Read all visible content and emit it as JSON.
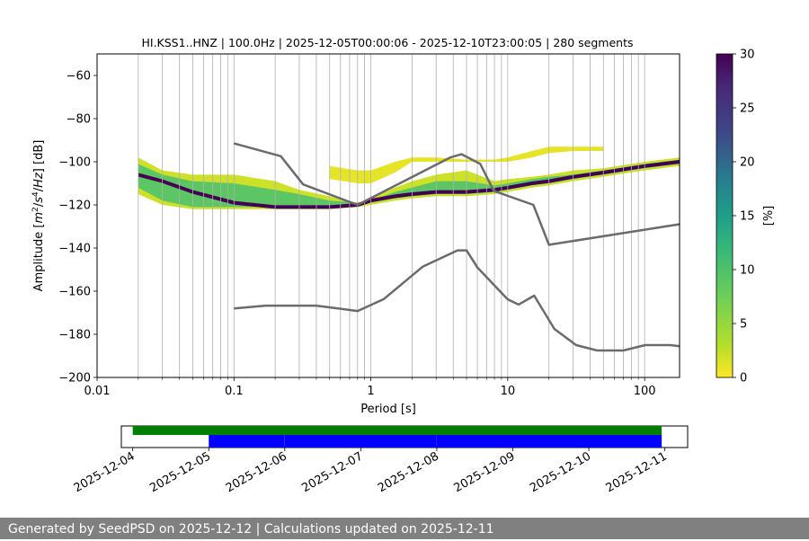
{
  "chart_data": [
    {
      "type": "heatmap",
      "title": "HI.KSS1..HNZ | 100.0Hz | 2025-12-05T00:00:06 - 2025-12-10T23:00:05 | 280 segments",
      "xlabel": "Period [s]",
      "ylabel_parts": [
        "Amplitude [",
        "m",
        "2",
        "/",
        "s",
        "4",
        "/",
        "Hz",
        "] [dB]"
      ],
      "x_scale": "log",
      "xlim": [
        0.01,
        180
      ],
      "ylim": [
        -200,
        -50
      ],
      "x_ticks": [
        0.01,
        0.1,
        1,
        10,
        100
      ],
      "x_tick_labels": [
        "0.01",
        "0.1",
        "1",
        "10",
        "100"
      ],
      "y_ticks": [
        -200,
        -180,
        -160,
        -140,
        -120,
        -100,
        -80,
        -60
      ],
      "y_tick_labels": [
        "−200",
        "−180",
        "−160",
        "−140",
        "−120",
        "−100",
        "−80",
        "−60"
      ],
      "grid": "vertical-only",
      "colormap": "viridis_r",
      "colorbar": {
        "label": "[%]",
        "range": [
          0,
          30
        ],
        "ticks": [
          0,
          5,
          10,
          15,
          20,
          25,
          30
        ],
        "tick_labels": [
          "0",
          "5",
          "10",
          "15",
          "20",
          "25",
          "30"
        ]
      },
      "mode_curve": {
        "period": [
          0.02,
          0.03,
          0.05,
          0.1,
          0.2,
          0.3,
          0.5,
          0.8,
          1,
          1.5,
          2,
          3,
          5,
          8,
          10,
          15,
          20,
          30,
          50,
          100,
          180
        ],
        "db": [
          -106,
          -109,
          -114,
          -119,
          -121,
          -121,
          -121,
          -120,
          -118,
          -116,
          -115,
          -114,
          -114,
          -113,
          -112,
          -110,
          -109,
          -107,
          -105,
          -102,
          -100
        ]
      },
      "density_bands": [
        {
          "period": [
            0.02,
            0.03,
            0.05,
            0.1,
            0.2,
            0.3,
            0.5,
            0.8,
            1,
            1.5,
            2,
            3,
            5,
            8,
            10,
            15,
            20,
            30,
            50,
            100,
            180
          ],
          "lower_db": [
            -115,
            -120,
            -122,
            -122,
            -122,
            -122,
            -122,
            -121,
            -120,
            -118,
            -117,
            -116,
            -116,
            -115,
            -114,
            -112,
            -111,
            -109,
            -107,
            -104,
            -102
          ],
          "upper_db": [
            -98,
            -104,
            -106,
            -106,
            -109,
            -113,
            -116,
            -119,
            -117,
            -112,
            -109,
            -106,
            -104,
            -109,
            -108,
            -107,
            -106,
            -104,
            -103,
            -100,
            -98
          ],
          "percent": 2
        },
        {
          "period": [
            0.02,
            0.03,
            0.05,
            0.1,
            0.2,
            0.3,
            0.5,
            0.8,
            1,
            1.5,
            2,
            3,
            5,
            8,
            10,
            15,
            20,
            30,
            50,
            100,
            180
          ],
          "lower_db": [
            -112,
            -118,
            -121,
            -121,
            -121,
            -121,
            -121,
            -120,
            -119,
            -117,
            -116,
            -115,
            -115,
            -114,
            -113,
            -111,
            -110,
            -108,
            -106,
            -103,
            -101
          ],
          "upper_db": [
            -101,
            -106,
            -109,
            -110,
            -113,
            -115,
            -118,
            -119,
            -118,
            -114,
            -112,
            -109,
            -109,
            -111,
            -110,
            -108,
            -107,
            -106,
            -104,
            -101,
            -99
          ],
          "percent": 9
        }
      ],
      "sparse_band": {
        "period": [
          0.5,
          0.8,
          1,
          1.5,
          2,
          3,
          5,
          8,
          10,
          15,
          20,
          30,
          50
        ],
        "lower_db": [
          -108,
          -110,
          -110,
          -105,
          -100,
          -100,
          -100,
          -100,
          -100,
          -98,
          -96,
          -95,
          -95
        ],
        "upper_db": [
          -102,
          -104,
          -104,
          -100,
          -98,
          -98,
          -99,
          -99,
          -98,
          -95,
          -93,
          -93,
          -93
        ],
        "percent": 1
      },
      "series": [
        {
          "name": "NHNM",
          "period": [
            0.1,
            0.22,
            0.32,
            0.8,
            3.8,
            4.6,
            6.3,
            7.9,
            15.4,
            20,
            354.8
          ],
          "db": [
            -91.5,
            -97.4,
            -110.5,
            -120,
            -98,
            -96.5,
            -101,
            -113.5,
            -120,
            -138.5,
            -126
          ]
        },
        {
          "name": "NLNM",
          "period": [
            0.1,
            0.17,
            0.4,
            0.8,
            1.24,
            2.4,
            4.3,
            5,
            6,
            10,
            12,
            15.6,
            21.9,
            31.6,
            45,
            70,
            101,
            154,
            328
          ],
          "db": [
            -168,
            -166.7,
            -166.7,
            -169.2,
            -163.7,
            -148.6,
            -141.1,
            -141.1,
            -149,
            -163.8,
            -166.2,
            -162.1,
            -177.5,
            -185,
            -187.5,
            -187.5,
            -185,
            -185,
            -187.5
          ]
        }
      ]
    },
    {
      "type": "timeline",
      "x_tick_labels": [
        "2025-12-04",
        "2025-12-05",
        "2025-12-06",
        "2025-12-07",
        "2025-12-08",
        "2025-12-09",
        "2025-12-10",
        "2025-12-11"
      ],
      "x_range": [
        "2025-12-03T20:24",
        "2025-12-11T07:12"
      ],
      "data_availability": {
        "start": "2025-12-04T00:00",
        "end": "2025-12-10T23:00",
        "color": "#008000"
      },
      "psd_segments": [
        {
          "start": "2025-12-05T00:00:06",
          "end": "2025-12-05T23:59"
        },
        {
          "start": "2025-12-06T00:01",
          "end": "2025-12-07T23:59"
        },
        {
          "start": "2025-12-08T00:01",
          "end": "2025-12-10T23:00:05"
        }
      ],
      "segment_color": "#0000ff"
    }
  ],
  "footer": {
    "text": "Generated by SeedPSD on 2025-12-12 | Calculations updated on 2025-12-11"
  }
}
